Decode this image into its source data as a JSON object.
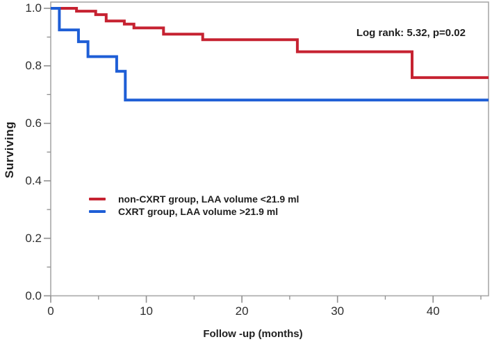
{
  "chart_data": {
    "type": "line",
    "variant": "kaplan_meier_step_curve",
    "title": "",
    "annotation": {
      "text": "Log rank: 5.32, p=0.02"
    },
    "x_axis": {
      "label": "Follow -up (months)",
      "range": [
        0,
        45.8
      ],
      "major_ticks": [
        {
          "value": 0,
          "label": "0"
        },
        {
          "value": 10,
          "label": "10"
        },
        {
          "value": 20,
          "label": "20"
        },
        {
          "value": 30,
          "label": "30"
        },
        {
          "value": 40,
          "label": "40"
        }
      ],
      "minor_ticks": [
        5,
        15,
        25,
        35,
        45
      ]
    },
    "y_axis": {
      "label": "Surviving",
      "range": [
        0.0,
        1.0
      ],
      "major_ticks": [
        {
          "value": 1.0,
          "label": "1.0"
        },
        {
          "value": 0.8,
          "label": "0.8"
        },
        {
          "value": 0.6,
          "label": "0.6"
        },
        {
          "value": 0.4,
          "label": "0.4"
        },
        {
          "value": 0.2,
          "label": "0.2"
        },
        {
          "value": 0.0,
          "label": "0.0"
        }
      ],
      "minor_ticks": [
        0.9,
        0.7,
        0.5,
        0.3,
        0.1
      ]
    },
    "legend": {
      "items": [
        {
          "label": "non-CXRT group, LAA volume <21.9 ml",
          "color": "#c62231"
        },
        {
          "label": "CXRT group, LAA volume >21.9 ml",
          "color": "#1e5ed6"
        }
      ]
    },
    "series": [
      {
        "name": "non-CXRT group, LAA volume <21.9 ml",
        "color": "#c62231",
        "points": [
          [
            0,
            1.0
          ],
          [
            2.7,
            0.99
          ],
          [
            4.7,
            0.978
          ],
          [
            5.8,
            0.956
          ],
          [
            7.7,
            0.945
          ],
          [
            8.7,
            0.932
          ],
          [
            11.8,
            0.91
          ],
          [
            15.9,
            0.891
          ],
          [
            25.8,
            0.849
          ],
          [
            37.8,
            0.759
          ],
          [
            45.8,
            0.759
          ]
        ]
      },
      {
        "name": "CXRT group, LAA volume >21.9 ml",
        "color": "#1e5ed6",
        "points": [
          [
            0,
            1.0
          ],
          [
            0.9,
            0.925
          ],
          [
            2.9,
            0.884
          ],
          [
            3.9,
            0.832
          ],
          [
            6.9,
            0.781
          ],
          [
            7.8,
            0.681
          ],
          [
            45.8,
            0.681
          ]
        ]
      }
    ],
    "style": {
      "axis_color": "#a8a8a8",
      "tick_color": "#8f8f8f",
      "line_width": 4
    }
  }
}
